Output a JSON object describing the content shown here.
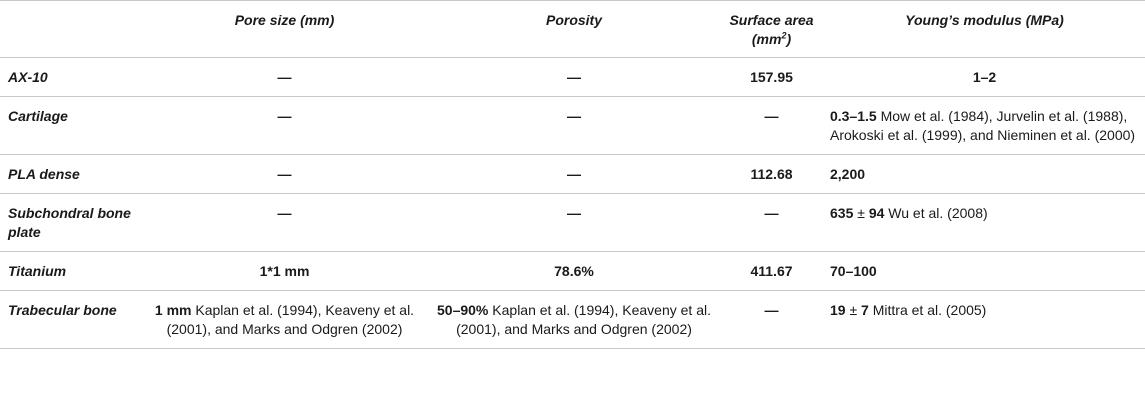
{
  "table": {
    "headers": {
      "blank": "",
      "pore_size": "Pore size (mm)",
      "porosity": "Porosity",
      "surface_area_pre": "Surface area (mm",
      "surface_area_sup": "2",
      "surface_area_post": ")",
      "youngs_modulus": "Young’s modulus (MPa)"
    },
    "rows": [
      {
        "material": "AX-10",
        "pore_size": "—",
        "porosity": "—",
        "surface_area": "157.95",
        "modulus_value": "1–2",
        "modulus_ref": ""
      },
      {
        "material": "Cartilage",
        "pore_size": "—",
        "porosity": "—",
        "surface_area": "—",
        "modulus_value": "0.3–1.5",
        "modulus_ref": " Mow et al. (1984), Jurvelin et al. (1988), Arokoski et al. (1999), and Nieminen et al. (2000)"
      },
      {
        "material": "PLA dense",
        "pore_size": "—",
        "porosity": "—",
        "surface_area": "112.68",
        "modulus_value": "2,200",
        "modulus_ref": ""
      },
      {
        "material": "Subchondral bone plate",
        "pore_size": "—",
        "porosity": "—",
        "surface_area": "—",
        "modulus_value": "635",
        "modulus_pm": " ± ",
        "modulus_value2": "94",
        "modulus_ref": " Wu et al. (2008)"
      },
      {
        "material": "Titanium",
        "pore_size": "1*1 mm",
        "porosity": "78.6%",
        "surface_area": "411.67",
        "modulus_value": "70–100",
        "modulus_ref": ""
      },
      {
        "material": "Trabecular bone",
        "pore_size_value": "1 mm",
        "pore_size_ref": " Kaplan et al. (1994), Keaveny et al. (2001), and Marks and Odgren (2002)",
        "porosity_value": "50–90%",
        "porosity_ref": " Kaplan et al. (1994), Keaveny et al. (2001), and Marks and Odgren (2002)",
        "surface_area": "—",
        "modulus_value": "19",
        "modulus_pm": " ± ",
        "modulus_value2": "7",
        "modulus_ref": " Mittra et al. (2005)"
      }
    ]
  }
}
